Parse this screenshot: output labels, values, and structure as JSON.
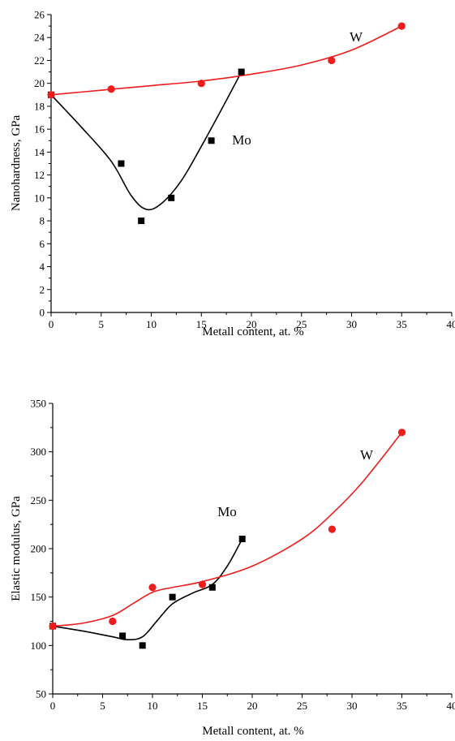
{
  "chart_data": [
    {
      "type": "scatter",
      "xlabel": "Metall content, at. %",
      "ylabel": "Nanohardness, GPa",
      "xlim": [
        0,
        40
      ],
      "ylim": [
        0,
        26
      ],
      "x_ticks": [
        0,
        5,
        10,
        15,
        20,
        25,
        30,
        35,
        40
      ],
      "y_ticks": [
        0,
        2,
        4,
        6,
        8,
        10,
        12,
        14,
        16,
        18,
        20,
        22,
        24,
        26
      ],
      "x_tick_labels": [
        "0",
        "5",
        "10",
        "15",
        "20",
        "25",
        "30",
        "35",
        "40"
      ],
      "y_tick_labels": [
        "0",
        "2",
        "4",
        "6",
        "8",
        "10",
        "12",
        "14",
        "16",
        "18",
        "20",
        "22",
        "24",
        "26"
      ],
      "grid": false,
      "series": [
        {
          "name": "Mo",
          "color": "#000000",
          "marker": "square",
          "x": [
            0,
            7,
            9,
            12,
            16,
            19
          ],
          "y": [
            19,
            13,
            8,
            10,
            15,
            21
          ],
          "fit_x": [
            0,
            3,
            6,
            8,
            9.5,
            11,
            13,
            15,
            17,
            19
          ],
          "fit_y": [
            19,
            16.2,
            13.2,
            10.2,
            9.0,
            9.5,
            11.5,
            14.5,
            17.7,
            21
          ]
        },
        {
          "name": "W",
          "color": "#ee1c1c",
          "marker": "circle",
          "x": [
            0,
            6,
            15,
            28,
            35
          ],
          "y": [
            19,
            19.5,
            20,
            22,
            25
          ],
          "fit_x": [
            0,
            5,
            10,
            15,
            20,
            25,
            30,
            35
          ],
          "fit_y": [
            19,
            19.4,
            19.8,
            20.2,
            20.8,
            21.6,
            22.9,
            25
          ]
        }
      ]
    },
    {
      "type": "scatter",
      "xlabel": "Metall content, at. %",
      "ylabel": "Elastic modulus, GPa",
      "xlim": [
        0,
        40
      ],
      "ylim": [
        50,
        350
      ],
      "x_ticks": [
        0,
        5,
        10,
        15,
        20,
        25,
        30,
        35,
        40
      ],
      "y_ticks": [
        50,
        100,
        150,
        200,
        250,
        300,
        350
      ],
      "x_tick_labels": [
        "0",
        "5",
        "10",
        "15",
        "20",
        "25",
        "30",
        "35",
        "40"
      ],
      "y_tick_labels": [
        "50",
        "100",
        "150",
        "200",
        "250",
        "300",
        "350"
      ],
      "grid": false,
      "series": [
        {
          "name": "Mo",
          "color": "#000000",
          "marker": "square",
          "x": [
            0,
            7,
            9,
            12,
            16,
            19
          ],
          "y": [
            120,
            110,
            100,
            150,
            160,
            210
          ],
          "fit_x": [
            0,
            3,
            6,
            7.5,
            9,
            10.5,
            12,
            14,
            16,
            17.5,
            19
          ],
          "fit_y": [
            120,
            115,
            109,
            106,
            109,
            126,
            143,
            154,
            163,
            182,
            210
          ]
        },
        {
          "name": "W",
          "color": "#ee1c1c",
          "marker": "circle",
          "x": [
            0,
            6,
            10,
            15,
            28,
            35
          ],
          "y": [
            120,
            125,
            160,
            163,
            220,
            320
          ],
          "fit_x": [
            0,
            3,
            6,
            8,
            10,
            12,
            15,
            20,
            25,
            28,
            31,
            35
          ],
          "fit_y": [
            120,
            123,
            131,
            143,
            155,
            160,
            166,
            182,
            210,
            236,
            268,
            320
          ]
        }
      ]
    }
  ]
}
